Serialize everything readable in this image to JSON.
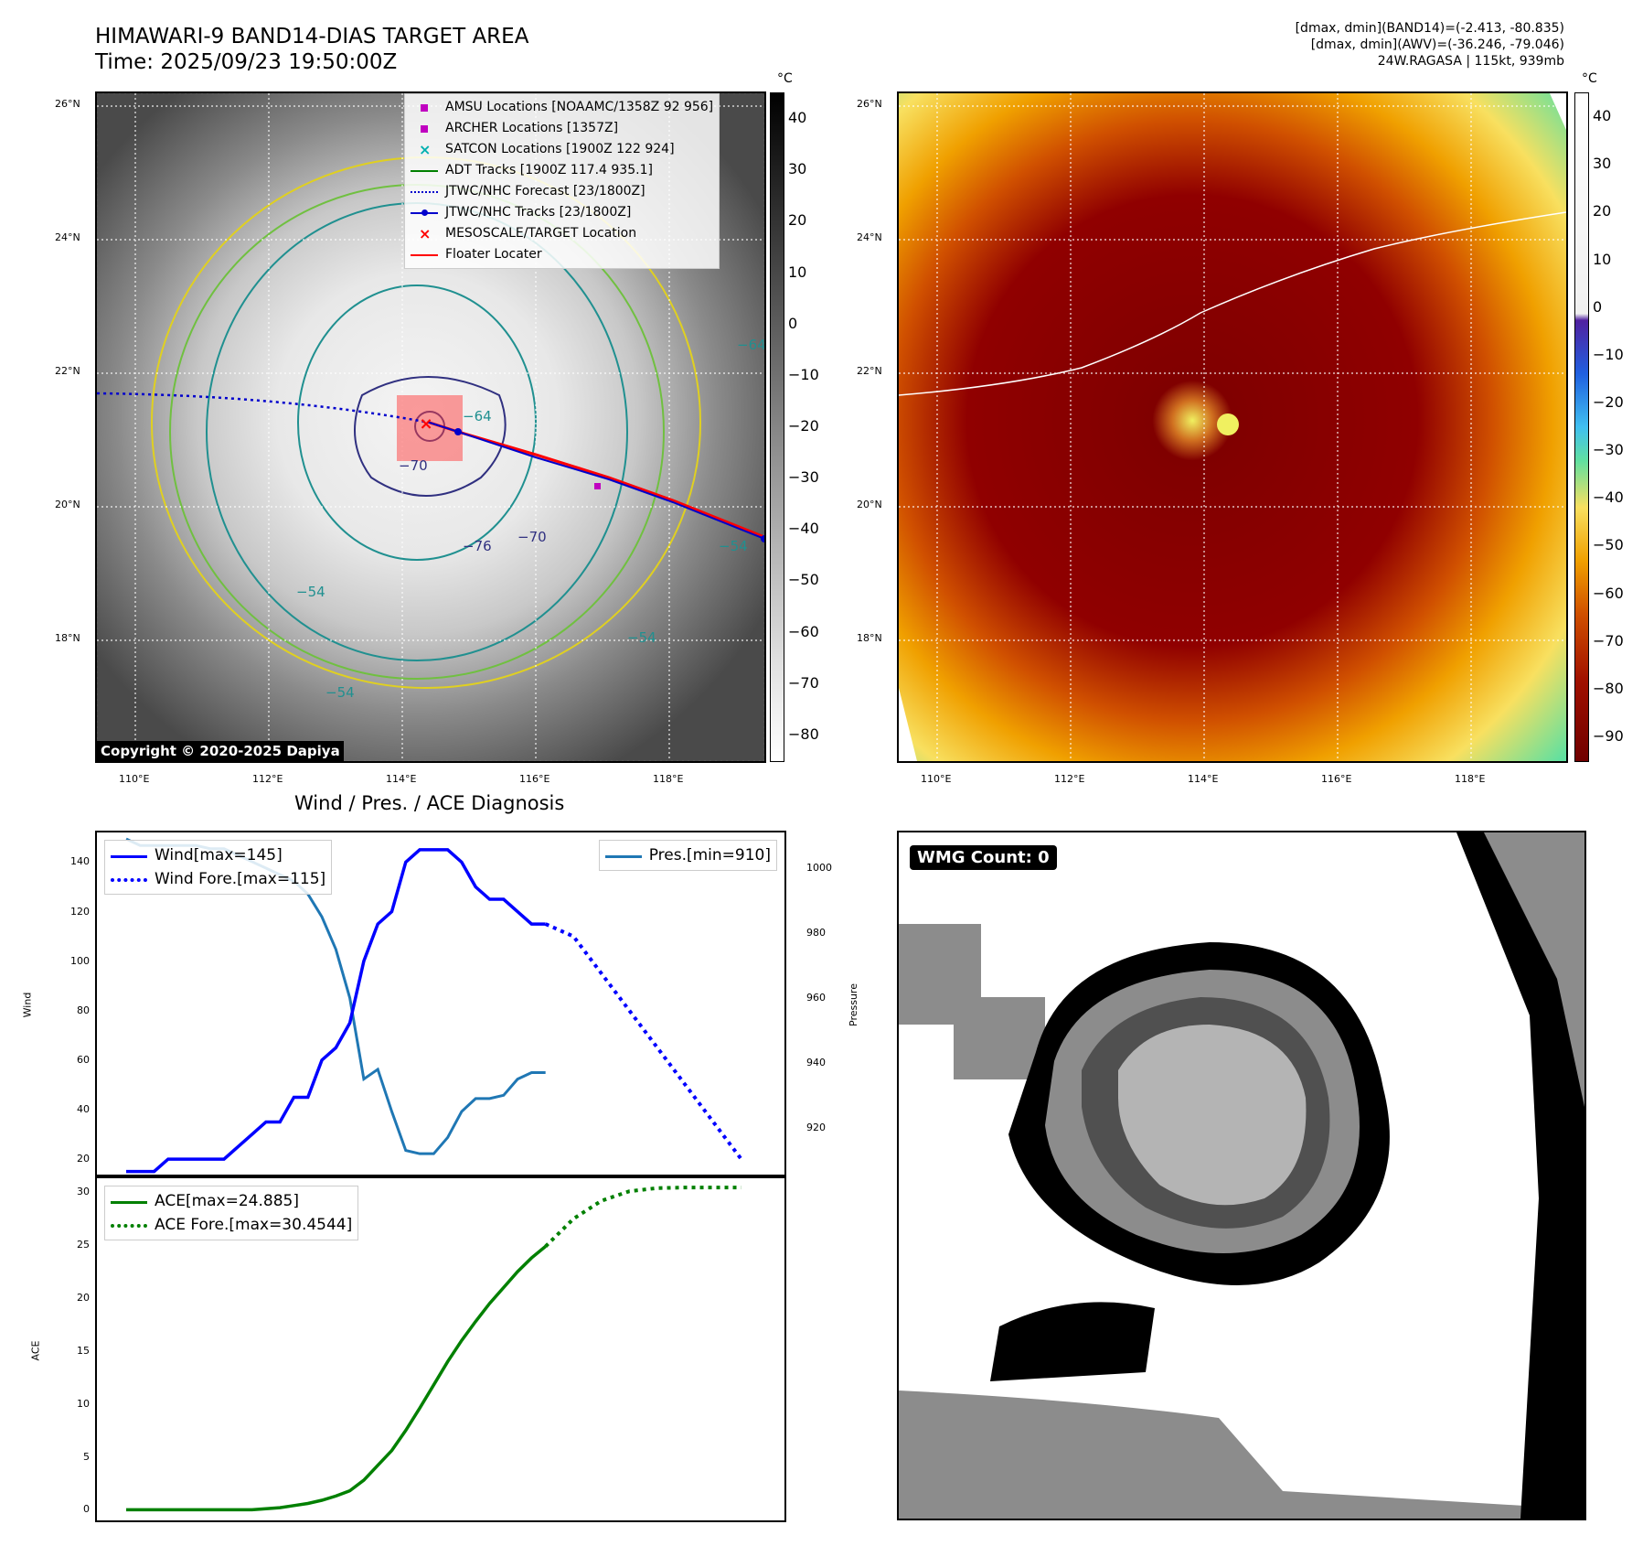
{
  "header": {
    "title_line1": "HIMAWARI-9 BAND14-DIAS TARGET AREA",
    "title_line2": "Time: 2025/09/23 19:50:00Z",
    "info_line1": "[dmax, dmin](BAND14)=(-2.413, -80.835)",
    "info_line2": "[dmax, dmin](AWV)=(-36.246, -79.046)",
    "info_line3": "24W.RAGASA | 115kt, 939mb"
  },
  "map_axes": {
    "lat_ticks": [
      "26°N",
      "24°N",
      "22°N",
      "20°N",
      "18°N"
    ],
    "lon_ticks": [
      "110°E",
      "112°E",
      "114°E",
      "116°E",
      "118°E"
    ]
  },
  "left_colorbar": {
    "unit": "°C",
    "ticks": [
      "40",
      "30",
      "20",
      "10",
      "0",
      "−10",
      "−20",
      "−30",
      "−40",
      "−50",
      "−60",
      "−70",
      "−80"
    ]
  },
  "right_colorbar": {
    "unit": "°C",
    "ticks": [
      "40",
      "30",
      "20",
      "10",
      "0",
      "−10",
      "−20",
      "−30",
      "−40",
      "−50",
      "−60",
      "−70",
      "−80",
      "−90"
    ]
  },
  "legend": {
    "items": [
      {
        "label": "AMSU Locations [NOAAMC/1358Z 92 956]",
        "color": "#c000c0"
      },
      {
        "label": "ARCHER Locations [1357Z]",
        "color": "#c000c0"
      },
      {
        "label": "SATCON Locations [1900Z 122 924]",
        "color": "#00b0b0"
      },
      {
        "label": "ADT Tracks [1900Z 117.4 935.1]",
        "color": "#008000"
      },
      {
        "label": "JTWC/NHC Forecast [23/1800Z]",
        "color": "#0000cc"
      },
      {
        "label": "JTWC/NHC Tracks [23/1800Z]",
        "color": "#0000cc"
      },
      {
        "label": "MESOSCALE/TARGET Location",
        "color": "#ff0000"
      },
      {
        "label": "Floater Locater",
        "color": "#ff0000"
      }
    ]
  },
  "contour_labels": [
    "−54",
    "−54",
    "−54",
    "−64",
    "−70",
    "−76",
    "−70",
    "−54",
    "−64"
  ],
  "copyright": "Copyright © 2020-2025 Dapiya",
  "wmg_label": "WMG Count: 0",
  "chart_data": [
    {
      "type": "line",
      "title": "Wind / Pres. / ACE Diagnosis",
      "ylabel_left": "Wind",
      "ylabel_right": "Pressure",
      "ylim_left": [
        13,
        152
      ],
      "ylim_right": [
        905,
        1011
      ],
      "yticks_left": [
        "20",
        "40",
        "60",
        "80",
        "100",
        "120",
        "140"
      ],
      "yticks_right": [
        "920",
        "940",
        "960",
        "980",
        "1000"
      ],
      "legend_left": [
        "Wind[max=145]",
        "Wind Fore.[max=115]"
      ],
      "legend_right": "Pres.[min=910]",
      "wind_x": [
        0,
        1,
        2,
        3,
        4,
        5,
        6,
        7,
        8,
        9,
        10,
        11,
        12,
        13,
        14,
        15,
        16,
        17,
        18,
        19,
        20,
        21,
        22,
        23,
        24,
        25,
        26,
        27,
        28,
        29,
        30
      ],
      "wind": [
        15,
        15,
        15,
        20,
        20,
        20,
        20,
        20,
        25,
        30,
        35,
        35,
        45,
        45,
        60,
        65,
        75,
        100,
        115,
        120,
        140,
        145,
        145,
        145,
        140,
        130,
        125,
        125,
        120,
        115,
        115
      ],
      "wind_forecast_x": [
        30,
        32,
        34,
        36,
        38,
        40,
        42,
        44
      ],
      "wind_forecast": [
        115,
        110,
        95,
        80,
        65,
        50,
        35,
        20
      ],
      "pressure_x": [
        0,
        1,
        2,
        3,
        4,
        5,
        6,
        7,
        8,
        9,
        10,
        11,
        12,
        13,
        14,
        15,
        16,
        17,
        18,
        19,
        20,
        21,
        22,
        23,
        24,
        25,
        26,
        27,
        28,
        29,
        30
      ],
      "pressure": [
        1009,
        1007,
        1007,
        1007,
        1007,
        1007,
        1006,
        1006,
        1004,
        1002,
        1000,
        998,
        996,
        992,
        985,
        975,
        960,
        935,
        938,
        925,
        913,
        912,
        912,
        917,
        925,
        929,
        929,
        930,
        935,
        937,
        937
      ]
    },
    {
      "type": "line",
      "ylabel": "ACE",
      "ylim": [
        -1,
        31.5
      ],
      "yticks": [
        "0",
        "5",
        "10",
        "15",
        "20",
        "25",
        "30"
      ],
      "legend": [
        "ACE[max=24.885]",
        "ACE Fore.[max=30.4544]"
      ],
      "ace_x": [
        0,
        2,
        4,
        6,
        8,
        9,
        10,
        11,
        12,
        13,
        14,
        15,
        16,
        17,
        18,
        19,
        20,
        21,
        22,
        23,
        24,
        25,
        26,
        27,
        28,
        29,
        30
      ],
      "ace": [
        0,
        0,
        0,
        0,
        0,
        0,
        0.1,
        0.2,
        0.4,
        0.6,
        0.9,
        1.3,
        1.8,
        2.8,
        4.2,
        5.6,
        7.5,
        9.6,
        11.8,
        14.0,
        16.0,
        17.8,
        19.5,
        21.0,
        22.5,
        23.8,
        24.885
      ],
      "ace_forecast_x": [
        30,
        32,
        34,
        36,
        38,
        40,
        42,
        44
      ],
      "ace_forecast": [
        24.885,
        27.5,
        29.2,
        30.1,
        30.4,
        30.45,
        30.45,
        30.45
      ],
      "xlim": [
        0,
        45
      ]
    }
  ]
}
